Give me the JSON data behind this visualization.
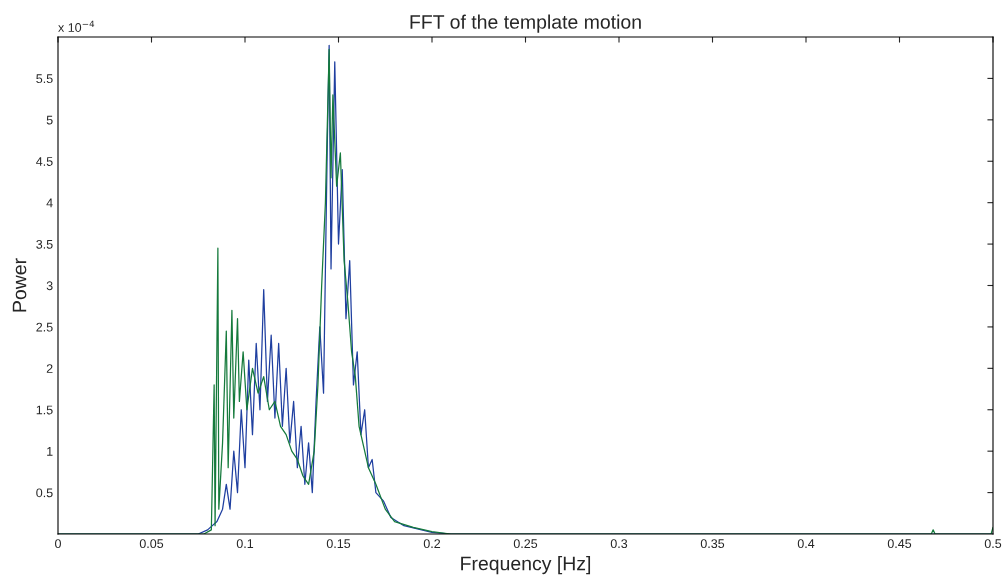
{
  "chart_data": {
    "type": "line",
    "title": "FFT of the template motion",
    "xlabel": "Frequency [Hz]",
    "ylabel": "Power",
    "annotations": [
      "x 10$^{−4}$"
    ],
    "xlim": [
      0,
      0.5
    ],
    "xticks": [
      0,
      0.05,
      0.1,
      0.15,
      0.2,
      0.25,
      0.3,
      0.35,
      0.4,
      0.45,
      0.5
    ],
    "ylim": [
      0,
      6
    ],
    "yticks": [
      0.5,
      1,
      1.5,
      2,
      2.5,
      3,
      3.5,
      4,
      4.5,
      5,
      5.5
    ],
    "grid": false,
    "series": [
      {
        "color": "#1f3fa0",
        "x": [
          0,
          0.075,
          0.08,
          0.085,
          0.088,
          0.09,
          0.092,
          0.094,
          0.096,
          0.098,
          0.1,
          0.102,
          0.104,
          0.106,
          0.108,
          0.11,
          0.112,
          0.114,
          0.116,
          0.118,
          0.12,
          0.122,
          0.124,
          0.126,
          0.128,
          0.13,
          0.132,
          0.134,
          0.136,
          0.138,
          0.14,
          0.142,
          0.144,
          0.145,
          0.146,
          0.148,
          0.15,
          0.152,
          0.154,
          0.156,
          0.158,
          0.16,
          0.162,
          0.164,
          0.166,
          0.168,
          0.17,
          0.174,
          0.178,
          0.185,
          0.2,
          0.21,
          0.5
        ],
        "values": [
          0,
          0,
          0.05,
          0.15,
          0.3,
          0.6,
          0.3,
          1.0,
          0.5,
          1.5,
          0.8,
          2.1,
          1.2,
          2.3,
          1.5,
          2.95,
          1.6,
          2.4,
          1.4,
          2.3,
          1.3,
          2.0,
          1.1,
          1.6,
          0.8,
          1.3,
          0.6,
          1.1,
          0.5,
          1.6,
          2.5,
          1.7,
          4.7,
          5.9,
          3.2,
          5.7,
          3.5,
          4.4,
          2.6,
          3.3,
          1.8,
          2.2,
          1.2,
          1.5,
          0.8,
          0.9,
          0.5,
          0.4,
          0.2,
          0.1,
          0.02,
          0,
          0
        ]
      },
      {
        "color": "#157a3c",
        "x": [
          0,
          0.078,
          0.082,
          0.0835,
          0.084,
          0.0855,
          0.086,
          0.088,
          0.09,
          0.091,
          0.093,
          0.094,
          0.096,
          0.097,
          0.099,
          0.101,
          0.104,
          0.107,
          0.11,
          0.113,
          0.116,
          0.119,
          0.122,
          0.125,
          0.128,
          0.131,
          0.134,
          0.137,
          0.139,
          0.141,
          0.143,
          0.145,
          0.146,
          0.147,
          0.149,
          0.151,
          0.153,
          0.155,
          0.157,
          0.159,
          0.161,
          0.163,
          0.166,
          0.17,
          0.175,
          0.18,
          0.19,
          0.2,
          0.21,
          0.467,
          0.468,
          0.469,
          0.499,
          0.5
        ],
        "values": [
          0,
          0,
          0.05,
          1.8,
          0.1,
          3.45,
          0.3,
          1.1,
          2.45,
          0.8,
          2.7,
          1.4,
          2.6,
          1.6,
          2.2,
          1.5,
          2.0,
          1.7,
          1.9,
          1.5,
          1.6,
          1.3,
          1.2,
          1.0,
          0.9,
          0.7,
          0.6,
          1.0,
          1.8,
          3.0,
          4.0,
          5.85,
          4.3,
          5.3,
          4.2,
          4.6,
          3.3,
          2.8,
          2.2,
          1.9,
          1.3,
          1.1,
          0.8,
          0.6,
          0.3,
          0.15,
          0.08,
          0.03,
          0,
          0,
          0.05,
          0,
          0,
          0.08
        ]
      }
    ]
  }
}
